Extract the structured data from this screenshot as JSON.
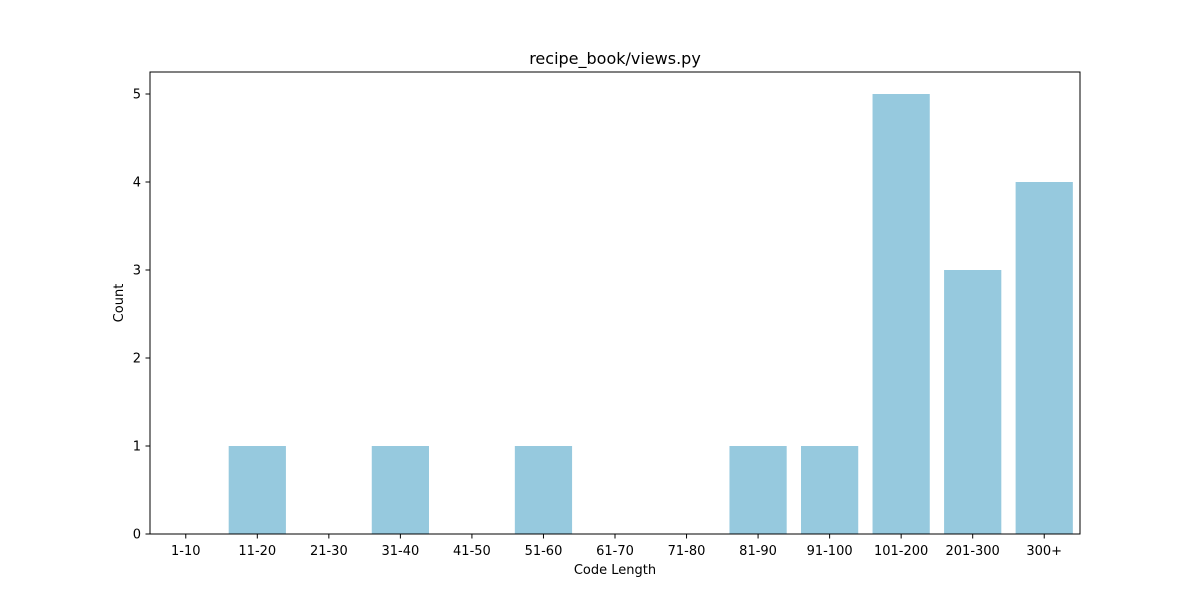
{
  "chart_data": {
    "type": "bar",
    "title": "recipe_book/views.py",
    "xlabel": "Code Length",
    "ylabel": "Count",
    "categories": [
      "1-10",
      "11-20",
      "21-30",
      "31-40",
      "41-50",
      "51-60",
      "61-70",
      "71-80",
      "81-90",
      "91-100",
      "101-200",
      "201-300",
      "300+"
    ],
    "values": [
      0,
      1,
      0,
      1,
      0,
      1,
      0,
      0,
      1,
      1,
      5,
      3,
      4
    ],
    "ylim": [
      0,
      5.25
    ],
    "yticks": [
      0,
      1,
      2,
      3,
      4,
      5
    ],
    "grid": false,
    "bar_color": "#96c9de"
  }
}
